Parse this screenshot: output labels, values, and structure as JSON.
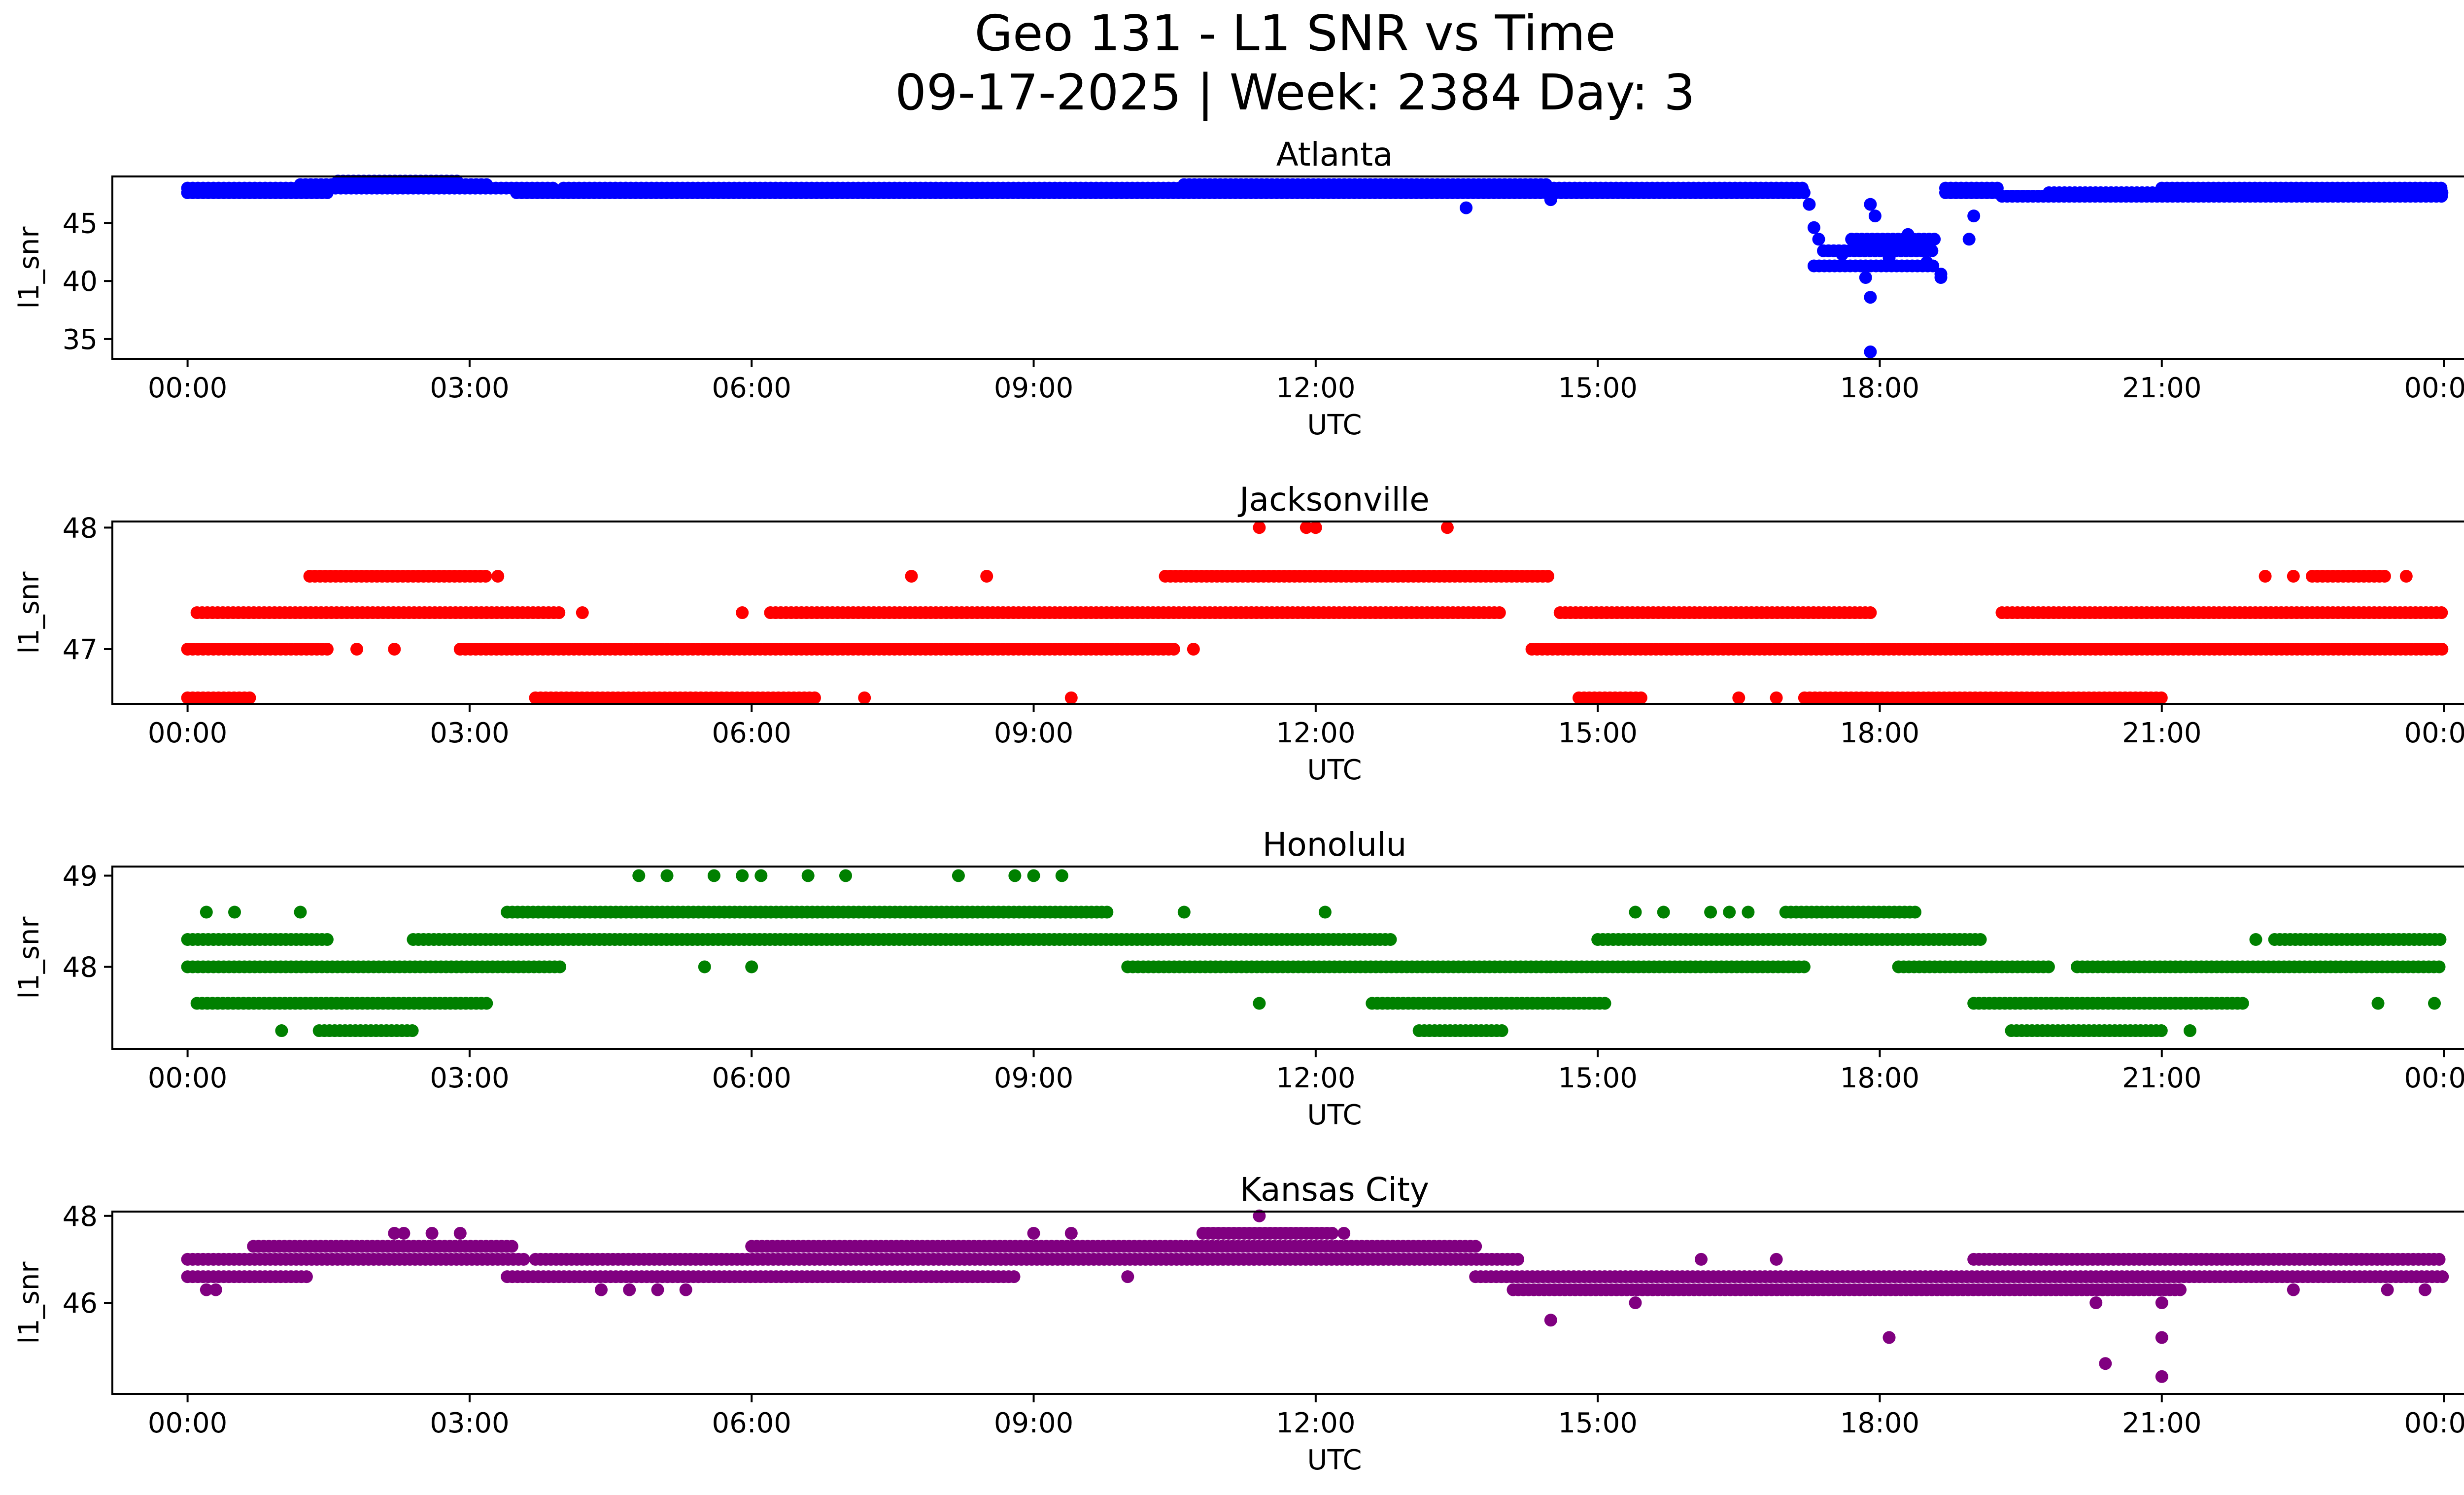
{
  "title_line1": "Geo 131 - L1 SNR vs Time",
  "title_line2": "09-17-2025 | Week: 2384 Day: 3",
  "chart_data": [
    {
      "type": "scatter",
      "title": "Atlanta",
      "color": "#0000ff",
      "xlabel": "UTC",
      "ylabel": "l1_snr",
      "xlim": [
        -0.8,
        25.2
      ],
      "ylim": [
        33.3,
        49.0
      ],
      "x_ticks": [
        0,
        3,
        6,
        9,
        12,
        15,
        18,
        21,
        24
      ],
      "x_tick_labels": [
        "00:00",
        "03:00",
        "06:00",
        "09:00",
        "12:00",
        "15:00",
        "18:00",
        "21:00",
        "00:00"
      ],
      "y_ticks": [
        35,
        40,
        45
      ],
      "y_tick_labels": [
        "35",
        "40",
        "45"
      ],
      "segments": [
        {
          "x": [
            0,
            1.5
          ],
          "y": 47.6
        },
        {
          "x": [
            0,
            1.3
          ],
          "y": 48.0
        },
        {
          "x": [
            1.2,
            3.2
          ],
          "y": 48.3
        },
        {
          "x": [
            1.6,
            2.9
          ],
          "y": 48.6
        },
        {
          "x": [
            1.3,
            3.9
          ],
          "y": 48.0
        },
        {
          "x": [
            3.5,
            17.2
          ],
          "y": 47.6
        },
        {
          "x": [
            4.0,
            12.5
          ],
          "y": 48.0
        },
        {
          "x": [
            10.6,
            14.5
          ],
          "y": 48.3
        },
        {
          "x": [
            12.5,
            17.2
          ],
          "y": 48.0
        },
        {
          "x": [
            17.3,
            18.6
          ],
          "y": 41.3
        },
        {
          "x": [
            17.4,
            18.6
          ],
          "y": 42.6
        },
        {
          "x": [
            17.7,
            18.6
          ],
          "y": 43.6
        },
        {
          "x": [
            18.7,
            19.3
          ],
          "y": 47.6
        },
        {
          "x": [
            18.7,
            19.3
          ],
          "y": 48.0
        },
        {
          "x": [
            19.3,
            24.0
          ],
          "y": 47.3
        },
        {
          "x": [
            19.8,
            24.0
          ],
          "y": 47.6
        },
        {
          "x": [
            21.0,
            24.0
          ],
          "y": 48.0
        }
      ],
      "points": [
        [
          13.6,
          46.3
        ],
        [
          14.5,
          47.0
        ],
        [
          17.25,
          46.6
        ],
        [
          17.3,
          44.6
        ],
        [
          17.35,
          43.6
        ],
        [
          17.9,
          46.6
        ],
        [
          17.95,
          45.6
        ],
        [
          17.85,
          40.3
        ],
        [
          17.9,
          38.6
        ],
        [
          17.9,
          33.9
        ],
        [
          18.65,
          40.3
        ],
        [
          18.65,
          40.6
        ],
        [
          18.95,
          43.6
        ],
        [
          19.0,
          45.6
        ],
        [
          17.6,
          42.3
        ],
        [
          18.3,
          44.0
        ],
        [
          18.1,
          42.0
        ],
        [
          18.5,
          41.6
        ]
      ]
    },
    {
      "type": "scatter",
      "title": "Jacksonville",
      "color": "#ff0000",
      "xlabel": "UTC",
      "ylabel": "l1_snr",
      "xlim": [
        -0.8,
        25.2
      ],
      "ylim": [
        46.55,
        48.05
      ],
      "x_ticks": [
        0,
        3,
        6,
        9,
        12,
        15,
        18,
        21,
        24
      ],
      "x_tick_labels": [
        "00:00",
        "03:00",
        "06:00",
        "09:00",
        "12:00",
        "15:00",
        "18:00",
        "21:00",
        "00:00"
      ],
      "y_ticks": [
        47,
        48
      ],
      "y_tick_labels": [
        "47",
        "48"
      ],
      "segments": [
        {
          "x": [
            0,
            0.7
          ],
          "y": 46.6
        },
        {
          "x": [
            0,
            1.5
          ],
          "y": 47.0
        },
        {
          "x": [
            0.1,
            4.0
          ],
          "y": 47.3
        },
        {
          "x": [
            1.3,
            3.2
          ],
          "y": 47.6
        },
        {
          "x": [
            2.9,
            10.5
          ],
          "y": 47.0
        },
        {
          "x": [
            3.7,
            6.7
          ],
          "y": 46.6
        },
        {
          "x": [
            6.2,
            14.0
          ],
          "y": 47.3
        },
        {
          "x": [
            10.4,
            14.5
          ],
          "y": 47.6
        },
        {
          "x": [
            14.3,
            24.0
          ],
          "y": 47.0
        },
        {
          "x": [
            14.6,
            17.9
          ],
          "y": 47.3
        },
        {
          "x": [
            14.8,
            15.5
          ],
          "y": 46.6
        },
        {
          "x": [
            17.2,
            21.0
          ],
          "y": 46.6
        },
        {
          "x": [
            19.3,
            24.0
          ],
          "y": 47.3
        },
        {
          "x": [
            22.6,
            23.4
          ],
          "y": 47.6
        }
      ],
      "points": [
        [
          1.8,
          47.0
        ],
        [
          2.2,
          47.0
        ],
        [
          3.3,
          47.6
        ],
        [
          4.2,
          47.3
        ],
        [
          5.9,
          47.3
        ],
        [
          7.2,
          46.6
        ],
        [
          7.7,
          47.6
        ],
        [
          8.5,
          47.6
        ],
        [
          9.4,
          46.6
        ],
        [
          10.7,
          47.0
        ],
        [
          11.4,
          48.0
        ],
        [
          11.9,
          48.0
        ],
        [
          12.0,
          48.0
        ],
        [
          13.4,
          48.0
        ],
        [
          16.5,
          46.6
        ],
        [
          16.9,
          46.6
        ],
        [
          22.1,
          47.6
        ],
        [
          22.4,
          47.6
        ],
        [
          23.6,
          47.6
        ]
      ]
    },
    {
      "type": "scatter",
      "title": "Honolulu",
      "color": "#008000",
      "xlabel": "UTC",
      "ylabel": "l1_snr",
      "xlim": [
        -0.8,
        25.2
      ],
      "ylim": [
        47.1,
        49.1
      ],
      "x_ticks": [
        0,
        3,
        6,
        9,
        12,
        15,
        18,
        21,
        24
      ],
      "x_tick_labels": [
        "00:00",
        "03:00",
        "06:00",
        "09:00",
        "12:00",
        "15:00",
        "18:00",
        "21:00",
        "00:00"
      ],
      "y_ticks": [
        48,
        49
      ],
      "y_tick_labels": [
        "48",
        "49"
      ],
      "segments": [
        {
          "x": [
            0,
            1.5
          ],
          "y": 48.3
        },
        {
          "x": [
            0,
            4.0
          ],
          "y": 48.0
        },
        {
          "x": [
            0.1,
            3.2
          ],
          "y": 47.6
        },
        {
          "x": [
            1.4,
            2.4
          ],
          "y": 47.3
        },
        {
          "x": [
            2.4,
            12.8
          ],
          "y": 48.3
        },
        {
          "x": [
            3.4,
            9.8
          ],
          "y": 48.6
        },
        {
          "x": [
            10.0,
            14.5
          ],
          "y": 48.0
        },
        {
          "x": [
            12.6,
            15.1
          ],
          "y": 47.6
        },
        {
          "x": [
            13.1,
            14.0
          ],
          "y": 47.3
        },
        {
          "x": [
            14.5,
            17.2
          ],
          "y": 48.0
        },
        {
          "x": [
            15.0,
            19.1
          ],
          "y": 48.3
        },
        {
          "x": [
            17.0,
            18.4
          ],
          "y": 48.6
        },
        {
          "x": [
            18.2,
            19.8
          ],
          "y": 48.0
        },
        {
          "x": [
            19.0,
            21.9
          ],
          "y": 47.6
        },
        {
          "x": [
            19.4,
            21.0
          ],
          "y": 47.3
        },
        {
          "x": [
            20.1,
            24.0
          ],
          "y": 48.0
        },
        {
          "x": [
            22.2,
            24.0
          ],
          "y": 48.3
        }
      ],
      "points": [
        [
          0.2,
          48.6
        ],
        [
          0.5,
          48.6
        ],
        [
          1.2,
          48.6
        ],
        [
          1.0,
          47.3
        ],
        [
          4.8,
          49.0
        ],
        [
          5.1,
          49.0
        ],
        [
          5.6,
          49.0
        ],
        [
          5.9,
          49.0
        ],
        [
          6.1,
          49.0
        ],
        [
          6.6,
          49.0
        ],
        [
          7.0,
          49.0
        ],
        [
          8.2,
          49.0
        ],
        [
          8.8,
          49.0
        ],
        [
          9.0,
          49.0
        ],
        [
          9.3,
          49.0
        ],
        [
          5.5,
          48.0
        ],
        [
          6.0,
          48.0
        ],
        [
          10.6,
          48.6
        ],
        [
          11.4,
          47.6
        ],
        [
          12.1,
          48.6
        ],
        [
          15.4,
          48.6
        ],
        [
          15.7,
          48.6
        ],
        [
          16.2,
          48.6
        ],
        [
          16.4,
          48.6
        ],
        [
          16.6,
          48.6
        ],
        [
          21.3,
          47.3
        ],
        [
          22.0,
          48.3
        ],
        [
          23.3,
          47.6
        ],
        [
          23.9,
          47.6
        ]
      ]
    },
    {
      "type": "scatter",
      "title": "Kansas City",
      "color": "#800080",
      "xlabel": "UTC",
      "ylabel": "l1_snr",
      "xlim": [
        -0.8,
        25.2
      ],
      "ylim": [
        43.9,
        48.1
      ],
      "x_ticks": [
        0,
        3,
        6,
        9,
        12,
        15,
        18,
        21,
        24
      ],
      "x_tick_labels": [
        "00:00",
        "03:00",
        "06:00",
        "09:00",
        "12:00",
        "15:00",
        "18:00",
        "21:00",
        "00:00"
      ],
      "y_ticks": [
        46,
        48
      ],
      "y_tick_labels": [
        "46",
        "48"
      ],
      "segments": [
        {
          "x": [
            0,
            1.3
          ],
          "y": 46.6
        },
        {
          "x": [
            0,
            3.6
          ],
          "y": 47.0
        },
        {
          "x": [
            0.7,
            3.5
          ],
          "y": 47.3
        },
        {
          "x": [
            3.4,
            8.8
          ],
          "y": 46.6
        },
        {
          "x": [
            3.7,
            14.2
          ],
          "y": 47.0
        },
        {
          "x": [
            6.0,
            13.7
          ],
          "y": 47.3
        },
        {
          "x": [
            10.8,
            12.2
          ],
          "y": 47.6
        },
        {
          "x": [
            13.7,
            24.0
          ],
          "y": 46.6
        },
        {
          "x": [
            14.1,
            21.2
          ],
          "y": 46.3
        },
        {
          "x": [
            19.0,
            24.0
          ],
          "y": 47.0
        }
      ],
      "points": [
        [
          0.2,
          46.3
        ],
        [
          0.3,
          46.3
        ],
        [
          2.2,
          47.6
        ],
        [
          2.3,
          47.6
        ],
        [
          2.6,
          47.6
        ],
        [
          2.9,
          47.6
        ],
        [
          4.4,
          46.3
        ],
        [
          4.7,
          46.3
        ],
        [
          5.0,
          46.3
        ],
        [
          5.3,
          46.3
        ],
        [
          9.0,
          47.6
        ],
        [
          9.4,
          47.6
        ],
        [
          10.0,
          46.6
        ],
        [
          11.4,
          48.0
        ],
        [
          12.3,
          47.6
        ],
        [
          14.5,
          45.6
        ],
        [
          15.4,
          46.0
        ],
        [
          16.1,
          47.0
        ],
        [
          16.9,
          47.0
        ],
        [
          18.1,
          45.2
        ],
        [
          20.3,
          46.0
        ],
        [
          20.4,
          44.6
        ],
        [
          21.0,
          45.2
        ],
        [
          21.0,
          44.3
        ],
        [
          21.0,
          46.0
        ],
        [
          22.4,
          46.3
        ],
        [
          23.4,
          46.3
        ],
        [
          23.8,
          46.3
        ]
      ]
    }
  ]
}
